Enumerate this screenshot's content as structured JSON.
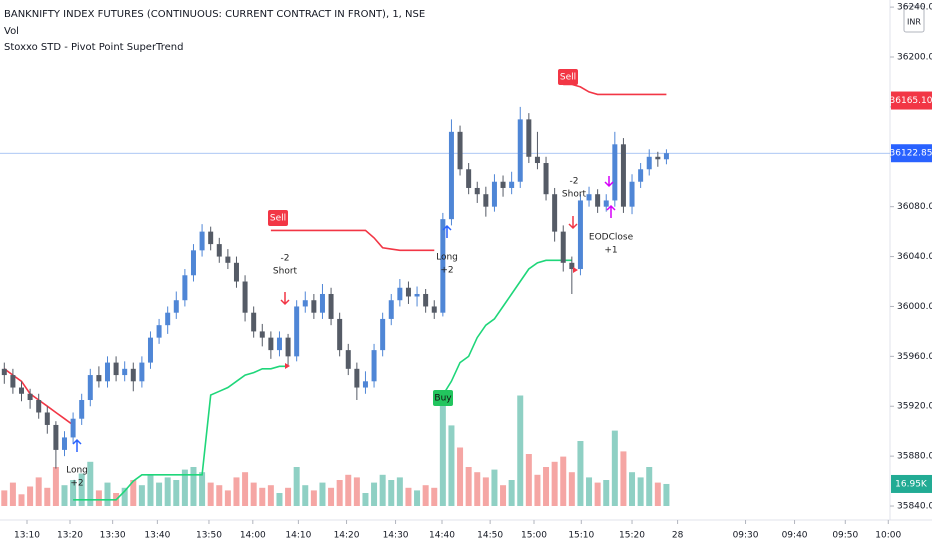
{
  "chart_data": {
    "type": "candlestick",
    "title": "BANKNIFTY INDEX FUTURES (CONTINUOUS: CURRENT CONTRACT IN FRONT), 1, NSE",
    "subtitle": "Vol",
    "indicator": "Stoxxo STD - Pivot Point SuperTrend",
    "currency": "INR",
    "up_color": "#4f86d6",
    "down_color": "#555b66",
    "volume_up_color": "#8fd0c4",
    "volume_down_color": "#f5a6a4",
    "xlim": [
      -0.5,
      103
    ],
    "xticks": [
      {
        "value": 2.64,
        "label": "13:10"
      },
      {
        "value": 7.64,
        "label": "13:20"
      },
      {
        "value": 12.6,
        "label": "13:30"
      },
      {
        "value": 17.8,
        "label": "13:40"
      },
      {
        "value": 23.8,
        "label": "13:50"
      },
      {
        "value": 28.9,
        "label": "14:00"
      },
      {
        "value": 34.2,
        "label": "14:10"
      },
      {
        "value": 39.8,
        "label": "14:20"
      },
      {
        "value": 45.5,
        "label": "14:30"
      },
      {
        "value": 50.9,
        "label": "14:40"
      },
      {
        "value": 56.5,
        "label": "14:50"
      },
      {
        "value": 61.6,
        "label": "15:00"
      },
      {
        "value": 67.1,
        "label": "15:10"
      },
      {
        "value": 73,
        "label": "15:20"
      },
      {
        "value": 78.3,
        "label": "28"
      },
      {
        "value": 86.2,
        "label": "09:30"
      },
      {
        "value": 91.9,
        "label": "09:40"
      },
      {
        "value": 97.8,
        "label": "09:50"
      },
      {
        "value": 102.8,
        "label": "10:00"
      }
    ],
    "ylim": [
      35828.8,
      36245.7
    ],
    "yticks": [
      {
        "value": 35840,
        "label": "35840.00"
      },
      {
        "value": 35880,
        "label": "35880.00"
      },
      {
        "value": 35920,
        "label": "35920.00"
      },
      {
        "value": 35960,
        "label": "35960.00"
      },
      {
        "value": 36000,
        "label": "36000.00"
      },
      {
        "value": 36040,
        "label": "36040.00"
      },
      {
        "value": 36080,
        "label": "36080.00"
      },
      {
        "value": 36120,
        "label": "36120.00"
      },
      {
        "value": 36160,
        "label": "36160.00"
      },
      {
        "value": 36200,
        "label": "36200.00"
      },
      {
        "value": 36240,
        "label": "36240.00"
      }
    ],
    "volume_lim": [
      0,
      100000
    ],
    "open": [
      35950,
      35945,
      35935,
      35930,
      35925,
      35915,
      35905,
      35885,
      35895,
      35910,
      35925,
      35945,
      35940,
      35955,
      35945,
      35950,
      35940,
      35955,
      35975,
      35985,
      35995,
      36005,
      36025,
      36045,
      36060,
      36050,
      36040,
      36035,
      36020,
      35995,
      35980,
      35975,
      35965,
      35975,
      35960,
      36000,
      36005,
      35995,
      36010,
      35990,
      35965,
      35950,
      35935,
      35940,
      35965,
      35990,
      36005,
      36015,
      36008,
      36010,
      36000,
      35995,
      36070,
      36140,
      36110,
      36095,
      36090,
      36080,
      36100,
      36095,
      36100,
      36150,
      36120,
      36115,
      36090,
      36060,
      36035,
      36030,
      36085,
      36090,
      36080,
      36085,
      36130,
      36080,
      36100,
      36110,
      36120,
      36118
    ],
    "high": [
      35955,
      35950,
      35940,
      35934,
      35930,
      35920,
      35908,
      35900,
      35915,
      35930,
      35950,
      35952,
      35960,
      35960,
      35956,
      35955,
      35960,
      35980,
      35990,
      36000,
      36012,
      36030,
      36050,
      36066,
      36064,
      36055,
      36046,
      36040,
      36025,
      36000,
      35986,
      35980,
      35980,
      35978,
      36005,
      36012,
      36010,
      36018,
      36015,
      35995,
      35970,
      35955,
      35948,
      35970,
      35995,
      36010,
      36022,
      36020,
      36016,
      36014,
      36005,
      36075,
      36150,
      36145,
      36115,
      36100,
      36096,
      36106,
      36105,
      36108,
      36160,
      36155,
      36140,
      36120,
      36095,
      36065,
      36040,
      36090,
      36096,
      36094,
      36090,
      36140,
      36135,
      36106,
      36115,
      36126,
      36124,
      36126
    ],
    "low": [
      35938,
      35930,
      35924,
      35918,
      35910,
      35898,
      35870,
      35880,
      35890,
      35905,
      35920,
      35935,
      35935,
      35940,
      35940,
      35932,
      35935,
      35950,
      35970,
      35978,
      35990,
      36000,
      36020,
      36040,
      36045,
      36035,
      36030,
      36015,
      35988,
      35975,
      35968,
      35958,
      35960,
      35952,
      35956,
      35995,
      35990,
      35990,
      35985,
      35960,
      35945,
      35925,
      35930,
      35935,
      35960,
      35985,
      36000,
      36002,
      36000,
      35995,
      35990,
      35992,
      36065,
      36105,
      36090,
      36083,
      36072,
      36076,
      36088,
      36090,
      36095,
      36115,
      36110,
      36085,
      36052,
      36028,
      36010,
      36025,
      36080,
      36075,
      36076,
      36080,
      36075,
      36074,
      36095,
      36105,
      36112,
      36114
    ],
    "close": [
      35945,
      35935,
      35930,
      35925,
      35915,
      35905,
      35885,
      35895,
      35910,
      35925,
      35945,
      35940,
      35955,
      35945,
      35950,
      35940,
      35955,
      35975,
      35985,
      35995,
      36005,
      36025,
      36045,
      36060,
      36050,
      36040,
      36035,
      36020,
      35995,
      35980,
      35975,
      35965,
      35975,
      35960,
      36000,
      36005,
      35995,
      36010,
      35990,
      35965,
      35950,
      35935,
      35940,
      35965,
      35990,
      36005,
      36015,
      36008,
      36010,
      36000,
      35995,
      36070,
      36140,
      36110,
      36095,
      36090,
      36080,
      36100,
      36095,
      36100,
      36150,
      36120,
      36115,
      36090,
      36060,
      36035,
      36030,
      36085,
      36090,
      36080,
      36085,
      36130,
      36080,
      36100,
      36110,
      36120,
      36118,
      36122.85
    ],
    "volume": [
      12000,
      18000,
      9000,
      15000,
      22000,
      14000,
      30000,
      16000,
      20000,
      25000,
      34000,
      12000,
      18000,
      10000,
      14000,
      20000,
      16000,
      24000,
      18000,
      22000,
      20000,
      28000,
      30000,
      26000,
      18000,
      16000,
      12000,
      22000,
      26000,
      18000,
      14000,
      16000,
      10000,
      14000,
      30000,
      16000,
      12000,
      18000,
      14000,
      20000,
      24000,
      22000,
      10000,
      18000,
      24000,
      20000,
      22000,
      14000,
      12000,
      16000,
      14000,
      88000,
      62000,
      45000,
      30000,
      26000,
      22000,
      28000,
      16000,
      20000,
      85000,
      40000,
      24000,
      30000,
      34000,
      38000,
      26000,
      50000,
      22000,
      18000,
      20000,
      58000,
      42000,
      26000,
      22000,
      30000,
      18000,
      16950
    ],
    "series": [
      {
        "name": "Up Trend",
        "color": "#1fd67a",
        "values": [
          null,
          null,
          null,
          null,
          null,
          null,
          null,
          null,
          35845,
          35845,
          35845,
          35845,
          35845,
          35845,
          35852,
          35860,
          35865,
          35865,
          35865,
          35865,
          35865,
          35865,
          35865,
          35865,
          35929,
          35932,
          35935,
          35940,
          35945,
          35947,
          35950,
          35950,
          35952,
          35952,
          null,
          null,
          null,
          null,
          null,
          null,
          null,
          null,
          null,
          null,
          null,
          null,
          null,
          null,
          null,
          null,
          null,
          35929,
          35940,
          35955,
          35960,
          35975,
          35985,
          35990,
          36000,
          36010,
          36020,
          36030,
          36035,
          36037,
          36037,
          36037,
          36037,
          null,
          null,
          null,
          null,
          null,
          null,
          null,
          null,
          null,
          null,
          null
        ]
      },
      {
        "name": "Down Trend",
        "color": "#f23645",
        "values": [
          35950,
          35945,
          35940,
          35930,
          35925,
          35920,
          35915,
          35910,
          35905,
          null,
          null,
          null,
          null,
          null,
          null,
          null,
          null,
          null,
          null,
          null,
          null,
          null,
          null,
          null,
          null,
          null,
          null,
          null,
          null,
          null,
          null,
          36061,
          36061,
          36061,
          36061,
          36061,
          36061,
          36061,
          36061,
          36061,
          36061,
          36061,
          36061,
          36055,
          36047,
          36046,
          36045,
          36045,
          36045,
          36045,
          36045,
          null,
          null,
          null,
          null,
          null,
          null,
          null,
          null,
          null,
          null,
          null,
          null,
          null,
          null,
          36178,
          36178,
          36176,
          36172,
          36170,
          36170,
          36170,
          36170,
          36170,
          36170,
          36170,
          36170,
          36170
        ]
      }
    ],
    "signals": [
      {
        "text": "Sell",
        "color": "#f23645"
      },
      {
        "text": "Sell",
        "color": "#f23645"
      },
      {
        "text": "Buy",
        "color": "#22c55e"
      }
    ],
    "trades": [
      {
        "lines": [
          "Long",
          "+2"
        ]
      },
      {
        "lines": [
          "-2",
          "Short"
        ]
      },
      {
        "lines": [
          "Long",
          "+2"
        ]
      },
      {
        "lines": [
          "-2",
          "Short"
        ]
      },
      {
        "lines": [
          "EODClose",
          "+1"
        ]
      }
    ],
    "price_markers": [
      {
        "value": 36165.1,
        "label": "36165.10",
        "color": "#f23645"
      },
      {
        "value": 36122.85,
        "color": "#2962ff"
      }
    ],
    "volume_marker": {
      "value": 16950,
      "label": "16.95K",
      "color": "#22ab94"
    }
  }
}
